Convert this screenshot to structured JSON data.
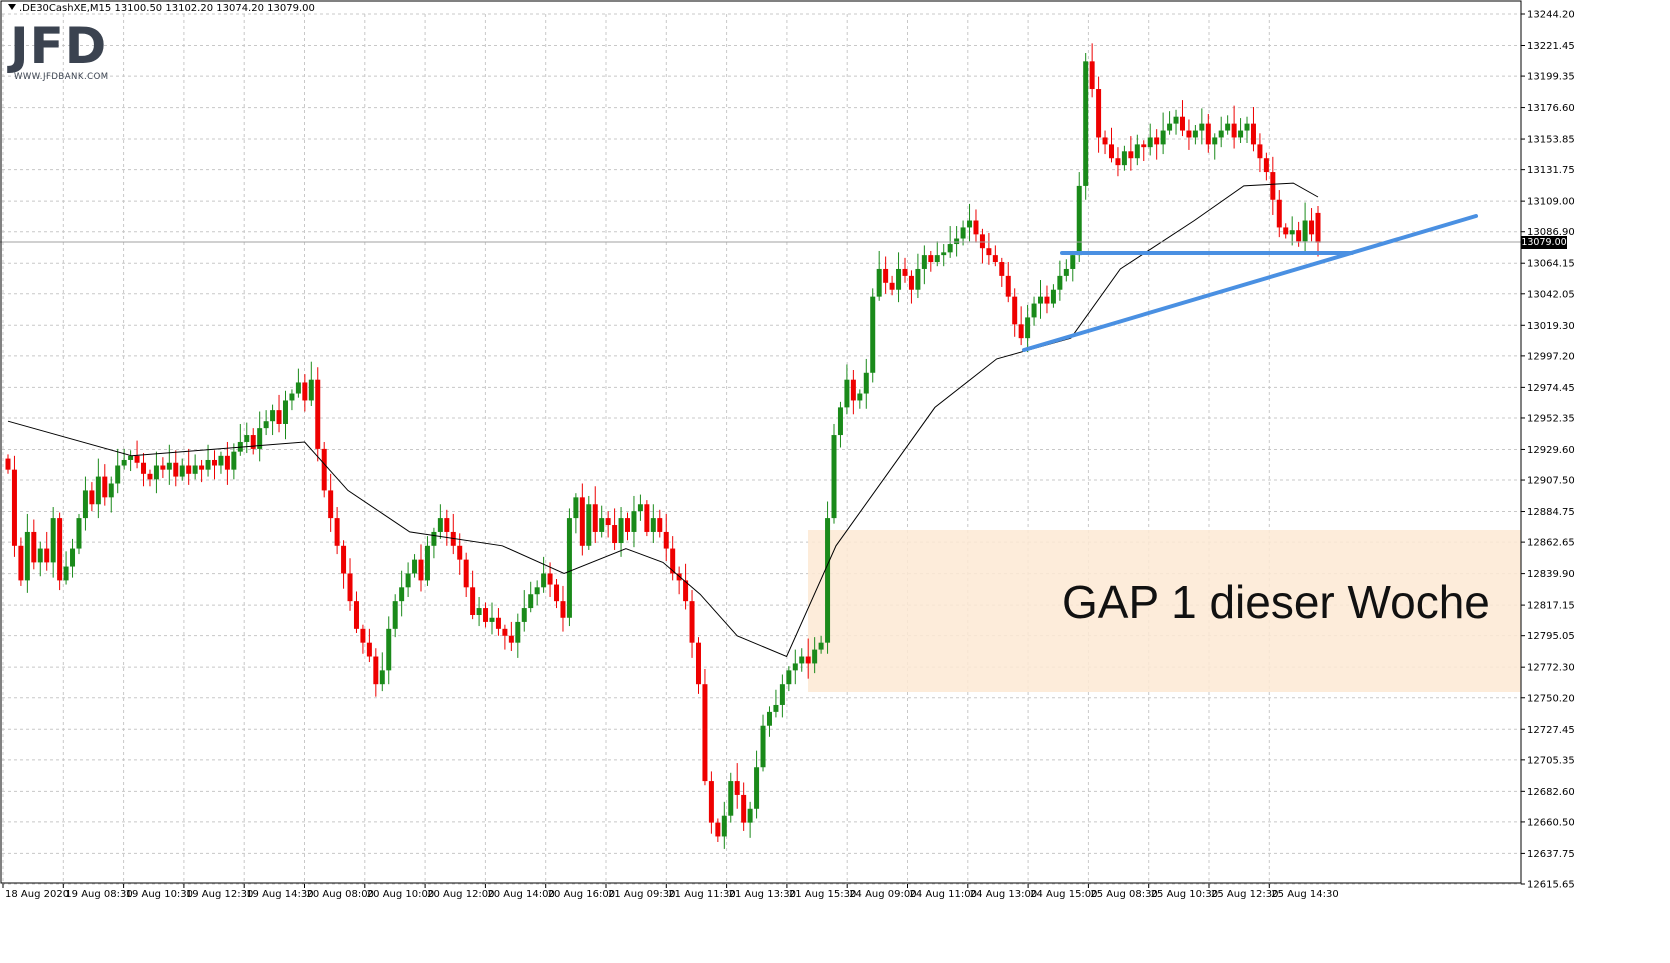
{
  "header": {
    "symbol_line": ".DE30CashXE,M15  13100.50 13102.20 13074.20 13079.00"
  },
  "logo": {
    "mark": "JFD",
    "url_text": "WWW.JFDBANK.COM",
    "mark_color": "#3b4350"
  },
  "annotation": {
    "gap_label": "GAP 1 dieser Woche",
    "gap_zone_color": "#fde9d4",
    "trendline_color": "#4a90e2"
  },
  "current_price_label": "13079.00",
  "colors": {
    "bull": "#1a8a1a",
    "bear": "#ee0000",
    "grid": "#c8c8c8",
    "ma": "#000000"
  },
  "chart_data": {
    "type": "candlestick",
    "symbol": ".DE30CashXE",
    "timeframe": "M15",
    "ohlc_last": {
      "open": 13100.5,
      "high": 13102.2,
      "low": 13074.2,
      "close": 13079.0
    },
    "ylim": [
      12615.65,
      13244.2
    ],
    "y_ticks": [
      "13244.20",
      "13221.45",
      "13199.35",
      "13176.60",
      "13153.85",
      "13131.75",
      "13109.00",
      "13086.90",
      "13064.15",
      "13042.05",
      "13019.30",
      "12997.20",
      "12974.45",
      "12952.35",
      "12929.60",
      "12907.50",
      "12884.75",
      "12862.65",
      "12839.90",
      "12817.15",
      "12795.05",
      "12772.30",
      "12750.20",
      "12727.45",
      "12705.35",
      "12682.60",
      "12660.50",
      "12637.75",
      "12615.65"
    ],
    "x_ticks": [
      "18 Aug 2020",
      "19 Aug 08:30",
      "19 Aug 10:30",
      "19 Aug 12:30",
      "19 Aug 14:30",
      "20 Aug 08:00",
      "20 Aug 10:00",
      "20 Aug 12:00",
      "20 Aug 14:00",
      "20 Aug 16:00",
      "21 Aug 09:30",
      "21 Aug 11:30",
      "21 Aug 13:30",
      "21 Aug 15:30",
      "24 Aug 09:00",
      "24 Aug 11:00",
      "24 Aug 13:00",
      "24 Aug 15:00",
      "25 Aug 08:30",
      "25 Aug 10:30",
      "25 Aug 12:30",
      "25 Aug 14:30"
    ],
    "closes": [
      12915,
      12860,
      12835,
      12870,
      12848,
      12858,
      12848,
      12880,
      12835,
      12845,
      12858,
      12880,
      12900,
      12890,
      12910,
      12895,
      12905,
      12918,
      12922,
      12925,
      12920,
      12912,
      12908,
      12918,
      12915,
      12920,
      12910,
      12918,
      12912,
      12918,
      12915,
      12922,
      12918,
      12925,
      12915,
      12928,
      12935,
      12940,
      12930,
      12945,
      12950,
      12958,
      12948,
      12965,
      12970,
      12978,
      12965,
      12980,
      12930,
      12900,
      12880,
      12860,
      12840,
      12820,
      12800,
      12790,
      12780,
      12760,
      12770,
      12800,
      12820,
      12830,
      12840,
      12850,
      12835,
      12860,
      12870,
      12880,
      12870,
      12860,
      12850,
      12830,
      12810,
      12815,
      12805,
      12808,
      12800,
      12795,
      12790,
      12805,
      12815,
      12825,
      12830,
      12840,
      12832,
      12820,
      12808,
      12880,
      12895,
      12860,
      12890,
      12870,
      12880,
      12875,
      12862,
      12880,
      12870,
      12885,
      12890,
      12870,
      12880,
      12870,
      12858,
      12840,
      12835,
      12820,
      12790,
      12760,
      12690,
      12660,
      12650,
      12665,
      12690,
      12680,
      12660,
      12670,
      12700,
      12730,
      12740,
      12745,
      12760,
      12770,
      12775,
      12780,
      12775,
      12785,
      12790,
      12880,
      12940,
      12960,
      12980,
      12965,
      12970,
      12985,
      13040,
      13060,
      13050,
      13045,
      13060,
      13055,
      13045,
      13060,
      13070,
      13065,
      13070,
      13072,
      13078,
      13082,
      13090,
      13095,
      13085,
      13075,
      13070,
      13065,
      13055,
      13040,
      13020,
      13010,
      13025,
      13035,
      13040,
      13035,
      13045,
      13055,
      13060,
      13070,
      13120,
      13210,
      13190,
      13155,
      13150,
      13140,
      13135,
      13145,
      13140,
      13150,
      13148,
      13155,
      13150,
      13160,
      13165,
      13170,
      13160,
      13155,
      13160,
      13165,
      13150,
      13155,
      13160,
      13165,
      13155,
      13160,
      13165,
      13150,
      13140,
      13130,
      13110,
      13090,
      13085,
      13088,
      13080,
      13095,
      13085,
      13079
    ],
    "moving_average": {
      "type": "line",
      "points": [
        [
          0,
          12950
        ],
        [
          20,
          12925
        ],
        [
          48,
          12935
        ],
        [
          55,
          12900
        ],
        [
          65,
          12870
        ],
        [
          80,
          12860
        ],
        [
          90,
          12840
        ],
        [
          100,
          12858
        ],
        [
          106,
          12848
        ],
        [
          112,
          12825
        ],
        [
          118,
          12795
        ],
        [
          126,
          12780
        ],
        [
          134,
          12860
        ],
        [
          150,
          12960
        ],
        [
          160,
          12995
        ],
        [
          172,
          13010
        ],
        [
          180,
          13060
        ],
        [
          192,
          13095
        ],
        [
          200,
          13120
        ],
        [
          208,
          13122
        ],
        [
          212,
          13112
        ]
      ]
    }
  }
}
